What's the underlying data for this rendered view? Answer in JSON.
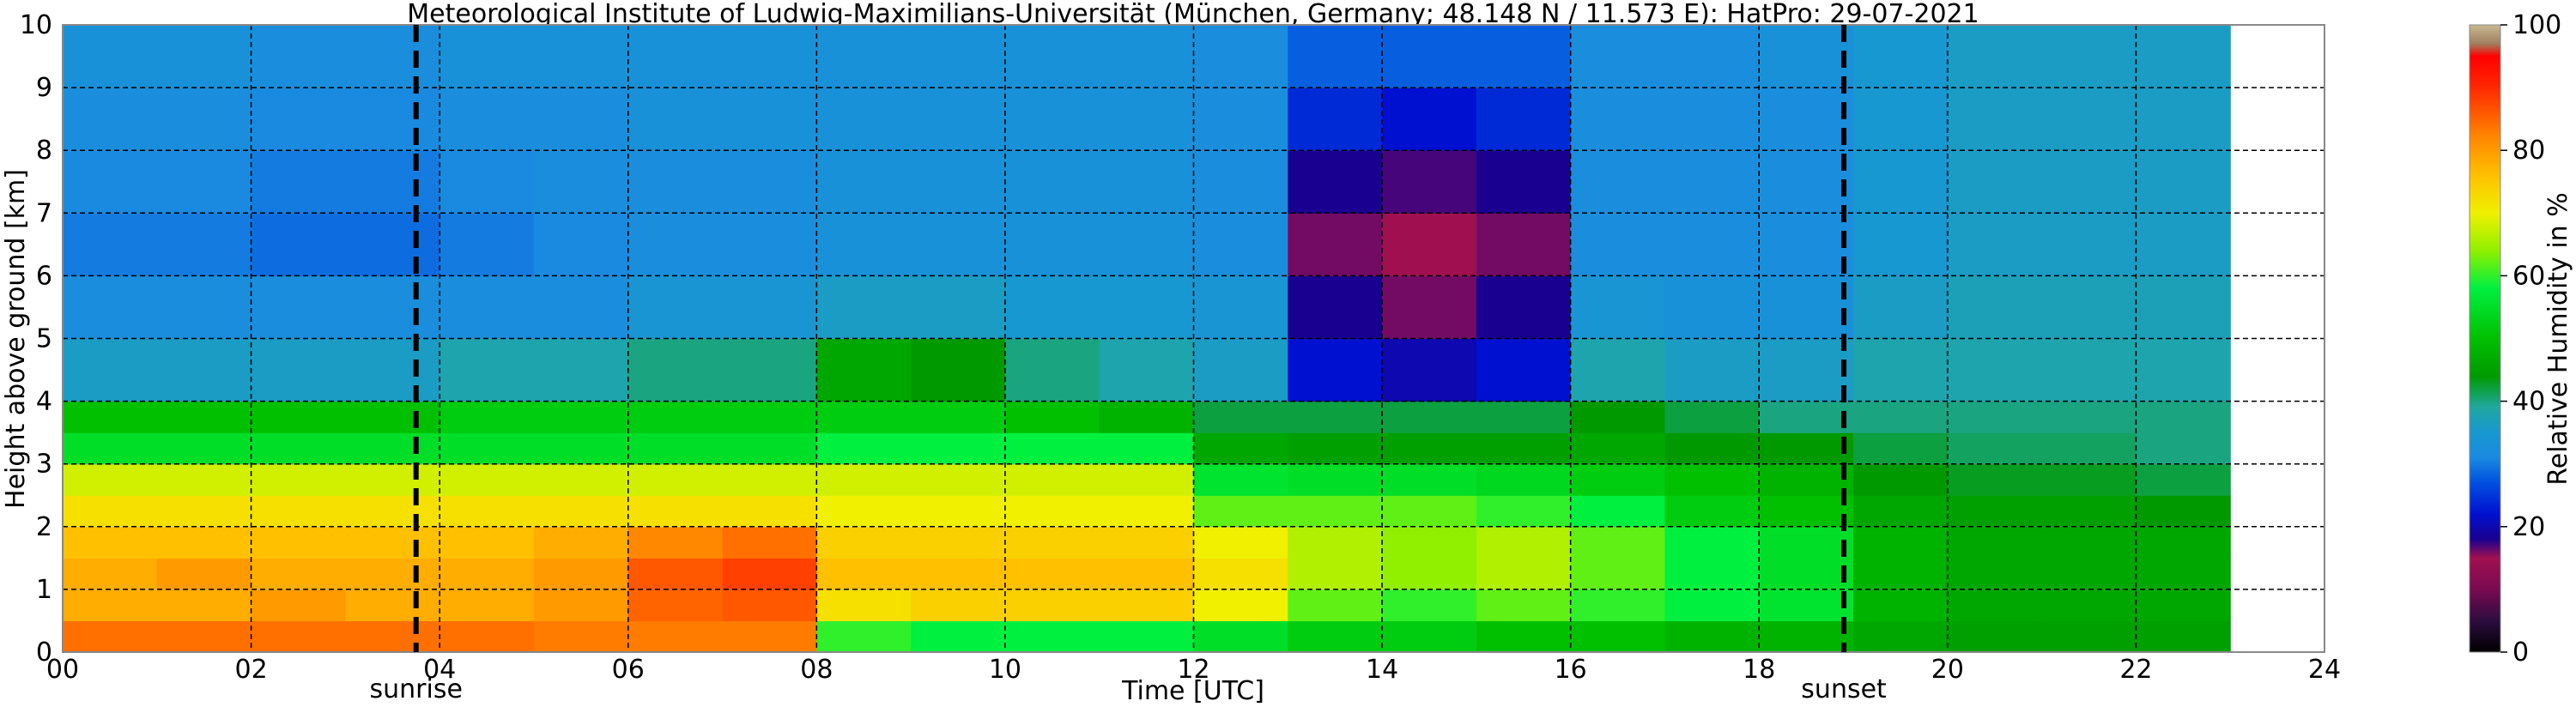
{
  "chart_data": {
    "type": "heatmap",
    "title": "Meteorological Institute of Ludwig-Maximilians-Universität (München, Germany; 48.148 N / 11.573 E):    HatPro: 29-07-2021",
    "x_label": "Time [UTC]",
    "y_label": "Height above ground [km]",
    "colorbar_label": "Relative Humidity in %",
    "xlim": [
      0,
      24
    ],
    "ylim": [
      0,
      10
    ],
    "xticks": [
      {
        "value": 0,
        "label": "00"
      },
      {
        "value": 2,
        "label": "02"
      },
      {
        "value": 4,
        "label": "04"
      },
      {
        "value": 6,
        "label": "06"
      },
      {
        "value": 8,
        "label": "08"
      },
      {
        "value": 10,
        "label": "10"
      },
      {
        "value": 12,
        "label": "12"
      },
      {
        "value": 14,
        "label": "14"
      },
      {
        "value": 16,
        "label": "16"
      },
      {
        "value": 18,
        "label": "18"
      },
      {
        "value": 20,
        "label": "20"
      },
      {
        "value": 22,
        "label": "22"
      },
      {
        "value": 24,
        "label": "24"
      }
    ],
    "yticks": [
      0,
      1,
      2,
      3,
      4,
      5,
      6,
      7,
      8,
      9,
      10
    ],
    "clim": [
      0,
      100
    ],
    "cticks": [
      0,
      20,
      40,
      60,
      80,
      100
    ],
    "grid": true,
    "colorscale": [
      [
        0,
        "#000000"
      ],
      [
        5,
        "#2c0c40"
      ],
      [
        10,
        "#7a0a50"
      ],
      [
        15,
        "#a01050"
      ],
      [
        18,
        "#1a0090"
      ],
      [
        22,
        "#0010d0"
      ],
      [
        27,
        "#0050e0"
      ],
      [
        31,
        "#1a8ae0"
      ],
      [
        35,
        "#1898d0"
      ],
      [
        39,
        "#20a8a0"
      ],
      [
        44,
        "#009a00"
      ],
      [
        50,
        "#00c000"
      ],
      [
        58,
        "#00f040"
      ],
      [
        64,
        "#90f000"
      ],
      [
        70,
        "#f0f000"
      ],
      [
        76,
        "#ffc000"
      ],
      [
        82,
        "#ff8800"
      ],
      [
        90,
        "#ff2800"
      ],
      [
        95,
        "#ff0000"
      ],
      [
        97,
        "#a08060"
      ],
      [
        100,
        "#c8b890"
      ]
    ],
    "x_edges": [
      0,
      1,
      2,
      3,
      4,
      5,
      6,
      7,
      8,
      9,
      10,
      11,
      12,
      13,
      14,
      15,
      16,
      17,
      18,
      19,
      20,
      21,
      22,
      23
    ],
    "y_edges": [
      0,
      0.5,
      1,
      1.5,
      2,
      2.5,
      3,
      3.5,
      4,
      5,
      6,
      7,
      8,
      9,
      10
    ],
    "z": [
      [
        84,
        84,
        84,
        84,
        84,
        83,
        83,
        83,
        60,
        58,
        58,
        58,
        55,
        52,
        52,
        50,
        50,
        48,
        48,
        46,
        45,
        45,
        45
      ],
      [
        78,
        78,
        80,
        78,
        78,
        80,
        85,
        86,
        72,
        74,
        74,
        74,
        70,
        62,
        60,
        62,
        60,
        58,
        56,
        48,
        46,
        46,
        46
      ],
      [
        78,
        80,
        78,
        78,
        78,
        80,
        86,
        88,
        76,
        76,
        76,
        76,
        72,
        66,
        64,
        66,
        62,
        58,
        55,
        48,
        46,
        46,
        46
      ],
      [
        76,
        76,
        76,
        76,
        76,
        78,
        82,
        84,
        74,
        74,
        74,
        74,
        70,
        66,
        64,
        66,
        62,
        58,
        55,
        48,
        46,
        46,
        46
      ],
      [
        72,
        72,
        72,
        72,
        72,
        72,
        72,
        72,
        70,
        70,
        70,
        70,
        62,
        62,
        62,
        60,
        58,
        52,
        50,
        46,
        45,
        45,
        44
      ],
      [
        68,
        68,
        68,
        68,
        68,
        68,
        68,
        68,
        68,
        68,
        68,
        68,
        56,
        55,
        55,
        54,
        52,
        50,
        48,
        44,
        43,
        43,
        42
      ],
      [
        55,
        55,
        55,
        55,
        55,
        55,
        55,
        55,
        58,
        58,
        58,
        58,
        46,
        45,
        45,
        45,
        46,
        44,
        44,
        42,
        41,
        41,
        40
      ],
      [
        50,
        50,
        50,
        50,
        52,
        52,
        52,
        52,
        52,
        52,
        50,
        48,
        42,
        42,
        42,
        42,
        44,
        42,
        40,
        40,
        40,
        40,
        40
      ],
      [
        36,
        36,
        36,
        36,
        38,
        38,
        40,
        40,
        46,
        44,
        40,
        38,
        36,
        22,
        20,
        22,
        38,
        36,
        36,
        38,
        38,
        38,
        38
      ],
      [
        32,
        32,
        32,
        32,
        32,
        32,
        34,
        34,
        36,
        36,
        35,
        35,
        34,
        18,
        16,
        18,
        34,
        33,
        33,
        36,
        37,
        37,
        37
      ],
      [
        30,
        30,
        29,
        29,
        30,
        31,
        32,
        32,
        33,
        33,
        33,
        33,
        32,
        16,
        15,
        16,
        32,
        32,
        32,
        35,
        36,
        36,
        36
      ],
      [
        31,
        31,
        30,
        30,
        31,
        32,
        32,
        32,
        33,
        33,
        33,
        33,
        32,
        18,
        17,
        18,
        32,
        32,
        32,
        35,
        36,
        36,
        36
      ],
      [
        32,
        32,
        31,
        31,
        32,
        32,
        33,
        33,
        33,
        33,
        33,
        33,
        32,
        24,
        22,
        24,
        32,
        32,
        32,
        35,
        36,
        36,
        36
      ],
      [
        33,
        33,
        32,
        32,
        33,
        33,
        33,
        33,
        33,
        33,
        33,
        33,
        32,
        28,
        28,
        28,
        32,
        32,
        33,
        35,
        36,
        36,
        36
      ]
    ],
    "annotations": [
      {
        "x": 3.75,
        "label": "sunrise"
      },
      {
        "x": 18.9,
        "label": "sunset"
      }
    ]
  }
}
